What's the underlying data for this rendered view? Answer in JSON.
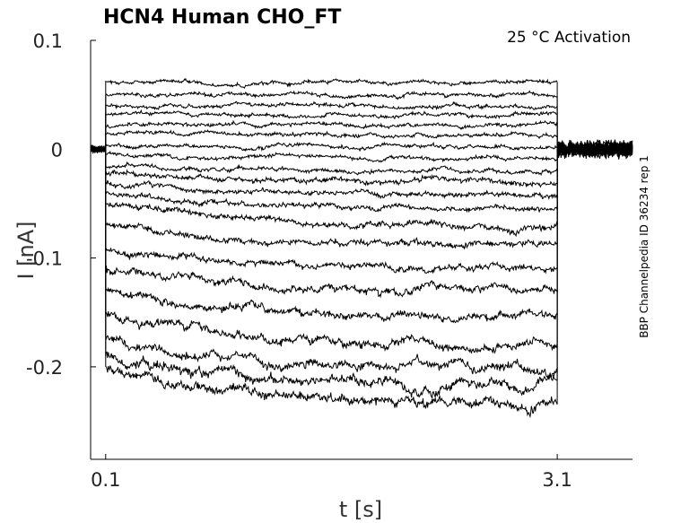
{
  "chart_data": {
    "type": "line",
    "title": "HCN4  Human  CHO_FT",
    "annotation": "25 °C  Activation",
    "side_label": "BBP Channelpedia ID 36234 rep 1",
    "xlabel": "t [s]",
    "ylabel": "I [nA]",
    "xlim": [
      0.0,
      3.6
    ],
    "ylim": [
      -0.285,
      0.1
    ],
    "x_ticks": [
      0.1,
      3.1
    ],
    "x_tick_labels": [
      "0.1",
      "3.1"
    ],
    "y_ticks": [
      0.1,
      0,
      -0.1,
      -0.2
    ],
    "y_tick_labels": [
      "0.1",
      "0",
      "-0.1",
      "-0.2"
    ],
    "grid": false,
    "line_color": "#000000",
    "pulse": {
      "start": 0.1,
      "end": 3.1,
      "hold_current": 0.0,
      "tail_end_current": 0.0
    },
    "series": [
      {
        "start_current": 0.062,
        "end_current": 0.062,
        "noise": 0.003
      },
      {
        "start_current": 0.05,
        "end_current": 0.05,
        "noise": 0.003
      },
      {
        "start_current": 0.04,
        "end_current": 0.04,
        "noise": 0.003
      },
      {
        "start_current": 0.032,
        "end_current": 0.032,
        "noise": 0.003
      },
      {
        "start_current": 0.022,
        "end_current": 0.022,
        "noise": 0.003
      },
      {
        "start_current": 0.015,
        "end_current": 0.013,
        "noise": 0.003
      },
      {
        "start_current": 0.004,
        "end_current": 0.002,
        "noise": 0.003
      },
      {
        "start_current": -0.005,
        "end_current": -0.008,
        "noise": 0.003
      },
      {
        "start_current": -0.015,
        "end_current": -0.02,
        "noise": 0.003
      },
      {
        "start_current": -0.022,
        "end_current": -0.03,
        "noise": 0.004
      },
      {
        "start_current": -0.03,
        "end_current": -0.042,
        "noise": 0.004
      },
      {
        "start_current": -0.04,
        "end_current": -0.055,
        "noise": 0.004
      },
      {
        "start_current": -0.05,
        "end_current": -0.07,
        "noise": 0.005
      },
      {
        "start_current": -0.07,
        "end_current": -0.088,
        "noise": 0.005
      },
      {
        "start_current": -0.09,
        "end_current": -0.11,
        "noise": 0.005
      },
      {
        "start_current": -0.11,
        "end_current": -0.13,
        "noise": 0.006
      },
      {
        "start_current": -0.13,
        "end_current": -0.155,
        "noise": 0.006
      },
      {
        "start_current": -0.15,
        "end_current": -0.18,
        "noise": 0.007
      },
      {
        "start_current": -0.175,
        "end_current": -0.2,
        "noise": 0.007
      },
      {
        "start_current": -0.19,
        "end_current": -0.215,
        "noise": 0.008
      },
      {
        "start_current": -0.2,
        "end_current": -0.235,
        "noise": 0.008
      }
    ]
  }
}
